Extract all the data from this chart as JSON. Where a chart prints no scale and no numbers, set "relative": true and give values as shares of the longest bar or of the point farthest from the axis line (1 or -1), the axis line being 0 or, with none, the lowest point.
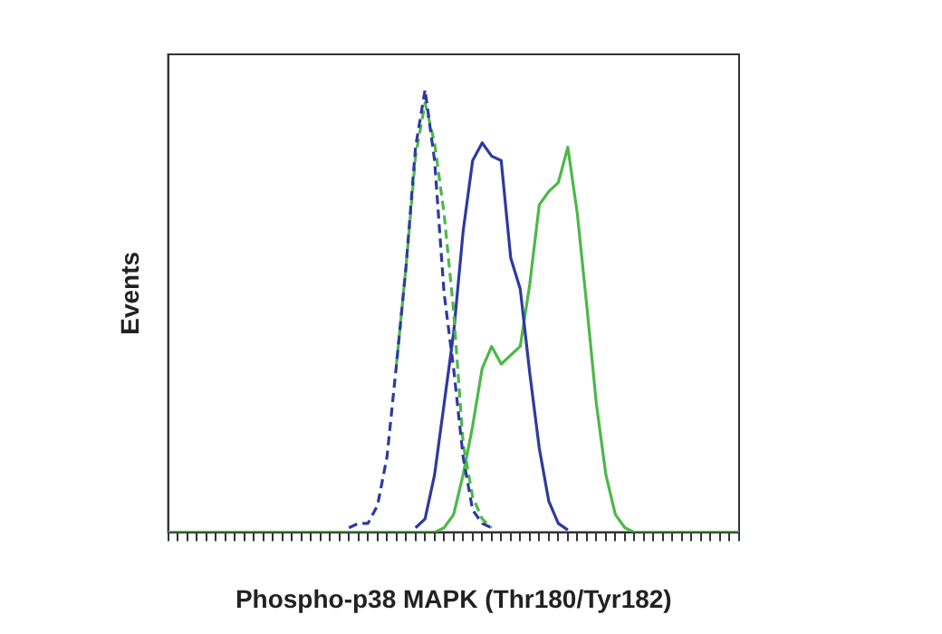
{
  "chart_data": {
    "type": "line",
    "xlabel": "Phospho-p38 MAPK (Thr180/Tyr182)",
    "ylabel": "Events",
    "relative": true,
    "marker": "none",
    "categories": [
      null,
      null,
      null,
      null,
      null,
      null,
      null,
      null,
      null,
      null,
      null,
      null,
      null,
      null,
      null,
      null,
      null,
      null,
      null,
      null,
      null,
      null,
      null,
      null,
      null,
      null,
      null,
      null,
      null,
      null,
      null,
      null,
      null,
      null,
      null,
      null,
      null,
      null,
      null,
      null,
      null,
      null,
      null,
      null,
      null,
      null,
      null,
      null,
      null,
      null,
      null,
      null,
      null,
      null,
      null,
      null,
      null,
      null,
      null,
      null,
      null
    ],
    "series": [
      {
        "color": "#2e3a9e",
        "line_style": "dashed",
        "values": [
          null,
          null,
          null,
          null,
          null,
          null,
          null,
          null,
          null,
          null,
          null,
          null,
          null,
          null,
          null,
          null,
          null,
          null,
          null,
          0.01,
          0.02,
          0.02,
          0.06,
          0.17,
          0.38,
          0.6,
          0.87,
          1,
          0.84,
          0.54,
          0.37,
          0.17,
          0.05,
          0.02,
          0.01,
          null,
          null,
          null,
          null,
          null,
          null,
          null,
          null,
          null,
          null,
          null,
          null,
          null,
          null,
          null,
          null,
          null,
          null,
          null,
          null,
          null,
          null,
          null,
          null,
          null,
          null
        ]
      },
      {
        "color": "#4cb848",
        "line_style": "dashed",
        "values": [
          null,
          null,
          null,
          null,
          null,
          null,
          null,
          null,
          null,
          null,
          null,
          null,
          null,
          null,
          null,
          null,
          null,
          null,
          null,
          null,
          null,
          null,
          null,
          null,
          0.38,
          0.6,
          0.85,
          0.97,
          0.88,
          0.72,
          0.5,
          0.2,
          0.08,
          0.03,
          0.01,
          null,
          null,
          null,
          null,
          null,
          null,
          null,
          null,
          null,
          null,
          null,
          null,
          null,
          null,
          null,
          null,
          null,
          null,
          null,
          null,
          null,
          null,
          null,
          null,
          null,
          null
        ]
      },
      {
        "color": "#2e3a9e",
        "line_style": "solid",
        "values": [
          null,
          null,
          null,
          null,
          null,
          null,
          null,
          null,
          null,
          null,
          null,
          null,
          null,
          null,
          null,
          null,
          null,
          null,
          null,
          null,
          null,
          null,
          null,
          null,
          null,
          null,
          0.01,
          0.03,
          0.13,
          0.29,
          0.45,
          0.68,
          0.84,
          0.88,
          0.85,
          0.84,
          0.62,
          0.55,
          0.36,
          0.19,
          0.07,
          0.02,
          0.005,
          null,
          null,
          null,
          null,
          null,
          null,
          null,
          null,
          null,
          null,
          null,
          null,
          null,
          null,
          null,
          null,
          null,
          null
        ]
      },
      {
        "color": "#4cb848",
        "line_style": "solid",
        "values": [
          0,
          0,
          0,
          0,
          0,
          0,
          0,
          0,
          0,
          0,
          0,
          0,
          0,
          0,
          0,
          0,
          0,
          0,
          0,
          0,
          0,
          0,
          0,
          0,
          0,
          0,
          0,
          0,
          0,
          0.01,
          0.04,
          0.13,
          0.24,
          0.37,
          0.42,
          0.38,
          0.4,
          0.42,
          0.56,
          0.74,
          0.77,
          0.79,
          0.87,
          0.72,
          0.51,
          0.29,
          0.13,
          0.04,
          0.01,
          0,
          0,
          0,
          0,
          0,
          0,
          0,
          0,
          0,
          0,
          0,
          0
        ]
      }
    ]
  }
}
